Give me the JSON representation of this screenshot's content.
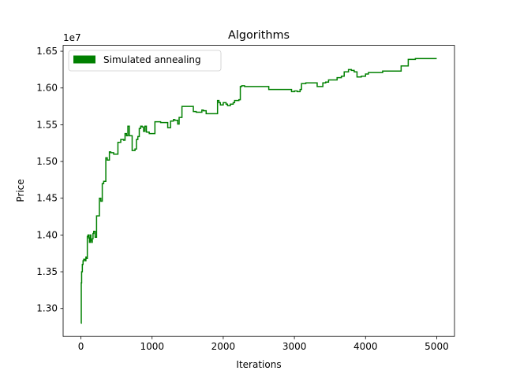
{
  "chart_data": {
    "type": "line",
    "title": "Algorithms",
    "xlabel": "Iterations",
    "ylabel": "Price",
    "y_offset_label": "1e7",
    "xlim": [
      -250,
      5250
    ],
    "ylim": [
      12620000.0,
      16580000.0
    ],
    "x_ticks": [
      0,
      1000,
      2000,
      3000,
      4000,
      5000
    ],
    "x_tick_labels": [
      "0",
      "1000",
      "2000",
      "3000",
      "4000",
      "5000"
    ],
    "y_ticks": [
      13000000.0,
      13500000.0,
      14000000.0,
      14500000.0,
      15000000.0,
      15500000.0,
      16000000.0,
      16500000.0
    ],
    "y_tick_labels": [
      "1.30",
      "1.35",
      "1.40",
      "1.45",
      "1.50",
      "1.55",
      "1.60",
      "1.65"
    ],
    "grid": false,
    "legend_position": "upper-left",
    "series": [
      {
        "name": "Simulated annealing",
        "color": "#008000",
        "step": true,
        "x": [
          0,
          5,
          10,
          20,
          30,
          40,
          50,
          60,
          70,
          80,
          90,
          100,
          110,
          120,
          130,
          140,
          150,
          160,
          170,
          180,
          200,
          220,
          240,
          260,
          280,
          300,
          320,
          350,
          370,
          400,
          420,
          440,
          460,
          480,
          520,
          560,
          600,
          620,
          640,
          660,
          680,
          720,
          760,
          780,
          800,
          820,
          840,
          860,
          880,
          900,
          920,
          960,
          1000,
          1040,
          1080,
          1120,
          1160,
          1200,
          1220,
          1260,
          1300,
          1320,
          1340,
          1360,
          1380,
          1400,
          1420,
          1460,
          1500,
          1560,
          1580,
          1620,
          1700,
          1720,
          1760,
          1880,
          1920,
          1940,
          1960,
          2000,
          2040,
          2060,
          2100,
          2140,
          2160,
          2180,
          2200,
          2220,
          2240,
          2260,
          2300,
          2400,
          2500,
          2640,
          2700,
          2800,
          2900,
          2960,
          3000,
          3040,
          3080,
          3100,
          3160,
          3200,
          3240,
          3320,
          3360,
          3400,
          3440,
          3480,
          3520,
          3600,
          3660,
          3700,
          3760,
          3800,
          3840,
          3880,
          3940,
          4000,
          4040,
          4080,
          4120,
          4160,
          4200,
          4240,
          4300,
          4400,
          4500,
          4540,
          4600,
          4700,
          4800,
          4900,
          5000
        ],
        "y": [
          12800000,
          13350000,
          13500000,
          13600000,
          13650000,
          13670000,
          13670000,
          13650000,
          13700000,
          13680000,
          13980000,
          14000000,
          13960000,
          13900000,
          14000000,
          13930000,
          13900000,
          13950000,
          14020000,
          14050000,
          13970000,
          14260000,
          14260000,
          14500000,
          14460000,
          14700000,
          14730000,
          15050000,
          15020000,
          15130000,
          15120000,
          15120000,
          15100000,
          15100000,
          15260000,
          15300000,
          15290000,
          15380000,
          15350000,
          15480000,
          15350000,
          15150000,
          15170000,
          15300000,
          15340000,
          15450000,
          15480000,
          15470000,
          15410000,
          15480000,
          15400000,
          15380000,
          15380000,
          15540000,
          15540000,
          15530000,
          15530000,
          15530000,
          15460000,
          15550000,
          15570000,
          15560000,
          15560000,
          15510000,
          15600000,
          15600000,
          15750000,
          15750000,
          15750000,
          15750000,
          15680000,
          15670000,
          15700000,
          15690000,
          15650000,
          15650000,
          15830000,
          15800000,
          15770000,
          15800000,
          15780000,
          15760000,
          15780000,
          15800000,
          15830000,
          15830000,
          15830000,
          15840000,
          16020000,
          16030000,
          16020000,
          16020000,
          16020000,
          15980000,
          15980000,
          15980000,
          15980000,
          15950000,
          15960000,
          15950000,
          15980000,
          16060000,
          16070000,
          16070000,
          16070000,
          16020000,
          16020000,
          16070000,
          16080000,
          16110000,
          16110000,
          16140000,
          16160000,
          16220000,
          16250000,
          16240000,
          16220000,
          16150000,
          16160000,
          16190000,
          16210000,
          16210000,
          16210000,
          16210000,
          16210000,
          16230000,
          16230000,
          16230000,
          16300000,
          16300000,
          16390000,
          16400000,
          16400000,
          16400000,
          16400000
        ]
      }
    ]
  }
}
